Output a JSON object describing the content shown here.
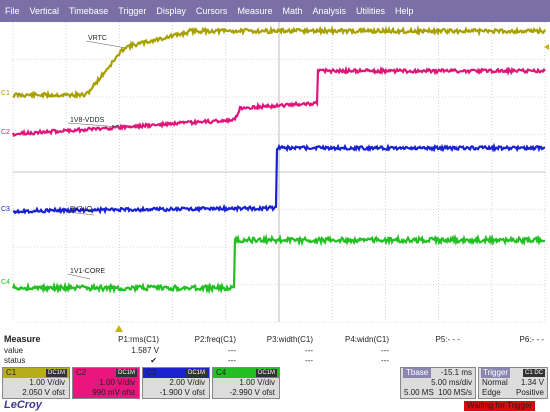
{
  "menu": [
    "File",
    "Vertical",
    "Timebase",
    "Trigger",
    "Display",
    "Cursors",
    "Measure",
    "Math",
    "Analysis",
    "Utilities",
    "Help"
  ],
  "traces": [
    {
      "id": "C1",
      "label": "VRTC",
      "color": "#a8a000"
    },
    {
      "id": "C2",
      "label": "1V8-VDDS",
      "color": "#e0157a"
    },
    {
      "id": "C3",
      "label": "3V3-IO",
      "color": "#1a22d0"
    },
    {
      "id": "C4",
      "label": "1V1-CORE",
      "color": "#22c022"
    }
  ],
  "measure": {
    "title": "Measure",
    "row_labels": [
      "value",
      "status"
    ],
    "params": [
      {
        "name": "P1:rms(C1)",
        "value": "1.587 V",
        "status": "✔"
      },
      {
        "name": "P2:freq(C1)",
        "value": "---",
        "status": "---"
      },
      {
        "name": "P3:width(C1)",
        "value": "---",
        "status": "---"
      },
      {
        "name": "P4:widn(C1)",
        "value": "---",
        "status": "---"
      },
      {
        "name": "P5:- - -",
        "value": "",
        "status": ""
      },
      {
        "name": "P6:- - -",
        "value": "",
        "status": ""
      }
    ]
  },
  "channels": [
    {
      "name": "C1",
      "coupling": "DC1M",
      "vdiv": "1.00 V/div",
      "offset": "2.050 V ofst",
      "color": "#b6ad1a",
      "text_color": "#222222"
    },
    {
      "name": "C2",
      "coupling": "DC1M",
      "vdiv": "1.00 V/div",
      "offset": "990 mV ofst",
      "color": "#e8167d",
      "text_color": "#222222"
    },
    {
      "name": "C3",
      "coupling": "DC1M",
      "vdiv": "2.00 V/div",
      "offset": "-1.900 V ofst",
      "color": "#1a22d0",
      "text_color": "#222222"
    },
    {
      "name": "C4",
      "coupling": "DC1M",
      "vdiv": "1.00 V/div",
      "offset": "-2.990 V ofst",
      "color": "#22c022",
      "text_color": "#222222"
    }
  ],
  "timebase": {
    "label": "Tbase",
    "value": "-15.1 ms",
    "rate": "5.00 ms/div",
    "samples": "5.00 MS",
    "srate": "100 MS/s",
    "color": "#8a86b0"
  },
  "trigger": {
    "label": "Trigger",
    "source": "C1 DC",
    "mode": "Normal",
    "level": "1.34 V",
    "type": "Edge",
    "slope": "Positive",
    "color": "#8a86b0"
  },
  "logo": "LeCroy",
  "status": "Waiting for Trigger"
}
